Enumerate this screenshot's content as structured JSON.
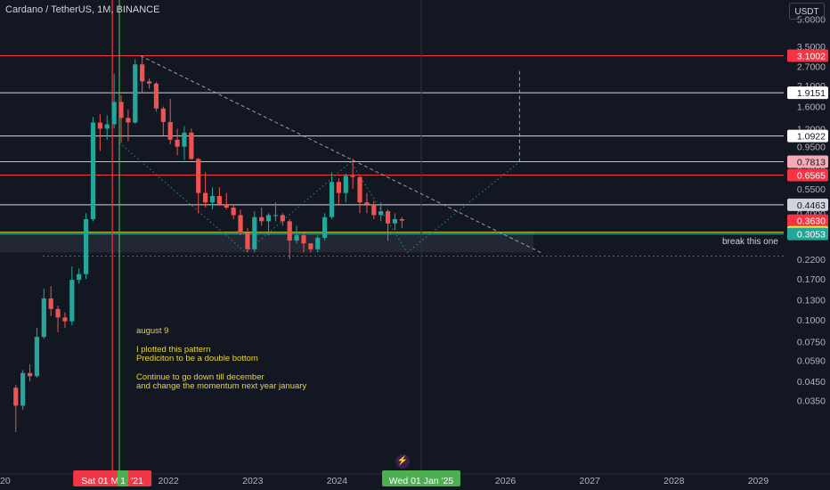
{
  "header": {
    "title": "Cardano / TetherUS, 1M, BINANCE",
    "currency": "USDT"
  },
  "annotations": {
    "note_lines": [
      "august 9",
      "",
      "I plotted this pattern",
      "Prediciton to be a double bottom",
      "",
      "Continue to go down till december",
      "and change the momentum next year january"
    ],
    "break_note": "break this one"
  },
  "colors": {
    "background": "#131722",
    "up": "#26a69a",
    "down": "#ef5350",
    "axis_text": "#b2b5be",
    "note": "#e8d43a"
  },
  "chart_data": {
    "type": "candlestick",
    "title": "Cardano / TetherUS, 1M, BINANCE",
    "y_scale": "log",
    "ylim": [
      0.03,
      6.0
    ],
    "y_ticks": [
      "5.0000",
      "3.5000",
      "2.7000",
      "2.1000",
      "1.6000",
      "1.2000",
      "0.9500",
      "0.7000",
      "0.5500",
      "0.4000",
      "0.3100",
      "0.2200",
      "0.1700",
      "0.1300",
      "0.1000",
      "0.0750",
      "0.0590",
      "0.0450",
      "0.0350"
    ],
    "x_ticks": [
      "2020",
      "2021",
      "2022",
      "2023",
      "2024",
      "2025",
      "2026",
      "2027",
      "2028",
      "2029"
    ],
    "x_tick_labels": [
      "2020",
      "",
      "2022",
      "2023",
      "2024",
      "",
      "2026",
      "2027",
      "2028",
      "2029"
    ],
    "x_partial_label": "1",
    "cursor_labels": [
      {
        "text": "Sat 01 May '21",
        "date": "2021-05-01",
        "color": "#f23645"
      },
      {
        "text": "Wed 01 Jan '25",
        "date": "2025-01-01",
        "color": "#4caf50"
      }
    ],
    "vertical_markers": [
      {
        "date": "2021-05-01",
        "color": "#f23645"
      },
      {
        "date": "2021-06-01",
        "color": "#4caf50"
      }
    ],
    "price_labels": [
      {
        "value": "3.1002",
        "bg": "#f23645",
        "fg": "#ffffff"
      },
      {
        "value": "1.9151",
        "bg": "#ffffff",
        "fg": "#131722"
      },
      {
        "value": "1.0922",
        "bg": "#ffffff",
        "fg": "#131722"
      },
      {
        "value": "0.7813",
        "bg": "#f7a9b5",
        "fg": "#131722"
      },
      {
        "value": "0.6565",
        "bg": "#f23645",
        "fg": "#ffffff"
      },
      {
        "value": "0.4463",
        "bg": "#d1d4dc",
        "fg": "#131722"
      },
      {
        "value": "0.3630",
        "bg": "#f23645",
        "fg": "#ffffff"
      },
      {
        "value": "0.3117",
        "bg": "#f5f046",
        "fg": "#131722"
      },
      {
        "value": "0.3053",
        "bg": "#26a69a",
        "fg": "#ffffff"
      }
    ],
    "horizontal_levels": [
      {
        "value": 3.1002,
        "color": "#f23645"
      },
      {
        "value": 1.9151,
        "color": "#d1d4dc"
      },
      {
        "value": 1.0922,
        "color": "#d1d4dc"
      },
      {
        "value": 0.7813,
        "color": "#f7a9b5"
      },
      {
        "value": 0.6565,
        "color": "#f23645"
      },
      {
        "value": 0.4463,
        "color": "#d1d4dc"
      },
      {
        "value": 0.3117,
        "color": "#f5f046"
      },
      {
        "value": 0.3053,
        "color": "#26a69a"
      }
    ],
    "support_zone": {
      "from_date": "2018-07-01",
      "to_date": "2026-05-01",
      "low": 0.24,
      "high": 0.31
    },
    "candles": [
      [
        "2020-03-01",
        0.0413,
        0.0427,
        0.0232,
        0.0327
      ],
      [
        "2020-04-01",
        0.0327,
        0.052,
        0.031,
        0.05
      ],
      [
        "2020-05-01",
        0.05,
        0.056,
        0.045,
        0.048
      ],
      [
        "2020-06-01",
        0.048,
        0.09,
        0.047,
        0.08
      ],
      [
        "2020-07-01",
        0.08,
        0.15,
        0.078,
        0.132
      ],
      [
        "2020-08-01",
        0.132,
        0.155,
        0.105,
        0.115
      ],
      [
        "2020-09-01",
        0.115,
        0.12,
        0.085,
        0.103
      ],
      [
        "2020-10-01",
        0.103,
        0.11,
        0.09,
        0.098
      ],
      [
        "2020-11-01",
        0.098,
        0.2,
        0.093,
        0.168
      ],
      [
        "2020-12-01",
        0.168,
        0.195,
        0.16,
        0.181
      ],
      [
        "2021-01-01",
        0.181,
        0.4,
        0.17,
        0.37
      ],
      [
        "2021-02-01",
        0.37,
        1.4,
        0.36,
        1.3
      ],
      [
        "2021-03-01",
        1.3,
        1.45,
        0.9,
        1.2
      ],
      [
        "2021-04-01",
        1.2,
        1.43,
        1.04,
        1.27
      ],
      [
        "2021-05-01",
        1.27,
        2.46,
        1.2,
        1.7
      ],
      [
        "2021-06-01",
        1.7,
        1.85,
        1.0,
        1.38
      ],
      [
        "2021-07-01",
        1.38,
        1.54,
        1.02,
        1.3
      ],
      [
        "2021-08-01",
        1.3,
        2.97,
        1.28,
        2.77
      ],
      [
        "2021-09-01",
        2.77,
        3.1,
        1.9,
        2.22
      ],
      [
        "2021-10-01",
        2.22,
        2.3,
        2.02,
        2.16
      ],
      [
        "2021-11-01",
        2.16,
        2.2,
        1.5,
        1.56
      ],
      [
        "2021-12-01",
        1.56,
        1.6,
        1.1,
        1.31
      ],
      [
        "2022-01-01",
        1.31,
        1.77,
        0.98,
        1.04
      ],
      [
        "2022-02-01",
        1.04,
        1.2,
        0.85,
        0.95
      ],
      [
        "2022-03-01",
        0.95,
        1.24,
        0.8,
        1.14
      ],
      [
        "2022-04-01",
        1.14,
        1.2,
        0.8,
        0.81
      ],
      [
        "2022-05-01",
        0.81,
        0.82,
        0.4,
        0.52
      ],
      [
        "2022-06-01",
        0.52,
        0.68,
        0.43,
        0.46
      ],
      [
        "2022-07-01",
        0.46,
        0.56,
        0.42,
        0.5
      ],
      [
        "2022-08-01",
        0.5,
        0.56,
        0.44,
        0.45
      ],
      [
        "2022-09-01",
        0.45,
        0.52,
        0.42,
        0.43
      ],
      [
        "2022-10-01",
        0.43,
        0.45,
        0.37,
        0.39
      ],
      [
        "2022-11-01",
        0.39,
        0.42,
        0.3,
        0.31
      ],
      [
        "2022-12-01",
        0.31,
        0.33,
        0.24,
        0.25
      ],
      [
        "2023-01-01",
        0.25,
        0.41,
        0.24,
        0.38
      ],
      [
        "2023-02-01",
        0.38,
        0.43,
        0.34,
        0.36
      ],
      [
        "2023-03-01",
        0.36,
        0.4,
        0.3,
        0.39
      ],
      [
        "2023-04-01",
        0.39,
        0.46,
        0.36,
        0.39
      ],
      [
        "2023-05-01",
        0.39,
        0.4,
        0.34,
        0.36
      ],
      [
        "2023-06-01",
        0.36,
        0.37,
        0.22,
        0.28
      ],
      [
        "2023-07-01",
        0.28,
        0.34,
        0.27,
        0.3
      ],
      [
        "2023-08-01",
        0.3,
        0.31,
        0.24,
        0.27
      ],
      [
        "2023-09-01",
        0.27,
        0.27,
        0.24,
        0.25
      ],
      [
        "2023-10-01",
        0.25,
        0.3,
        0.24,
        0.29
      ],
      [
        "2023-11-01",
        0.29,
        0.4,
        0.28,
        0.38
      ],
      [
        "2023-12-01",
        0.38,
        0.68,
        0.37,
        0.6
      ],
      [
        "2024-01-01",
        0.6,
        0.63,
        0.45,
        0.52
      ],
      [
        "2024-02-01",
        0.52,
        0.67,
        0.46,
        0.65
      ],
      [
        "2024-03-01",
        0.65,
        0.81,
        0.55,
        0.64
      ],
      [
        "2024-04-01",
        0.64,
        0.65,
        0.4,
        0.46
      ],
      [
        "2024-05-01",
        0.46,
        0.52,
        0.4,
        0.45
      ],
      [
        "2024-06-01",
        0.45,
        0.47,
        0.37,
        0.39
      ],
      [
        "2024-07-01",
        0.39,
        0.46,
        0.36,
        0.41
      ],
      [
        "2024-08-01",
        0.41,
        0.42,
        0.28,
        0.35
      ],
      [
        "2024-09-01",
        0.35,
        0.4,
        0.32,
        0.37
      ],
      [
        "2024-10-01",
        0.37,
        0.38,
        0.33,
        0.363
      ]
    ],
    "drawings": [
      {
        "type": "dashed",
        "color": "#b2b5be",
        "points": [
          [
            "2021-09-01",
            3.1
          ],
          [
            "2026-06-01",
            0.24
          ]
        ]
      },
      {
        "type": "dashed",
        "color": "#b2b5be",
        "points": [
          [
            "2026-03-01",
            0.78
          ],
          [
            "2026-03-01",
            2.6
          ]
        ]
      },
      {
        "type": "dotted",
        "color": "#26a69a",
        "points": [
          [
            "2021-06-01",
            1.0
          ],
          [
            "2022-12-01",
            0.24
          ],
          [
            "2024-03-01",
            0.78
          ],
          [
            "2024-11-01",
            0.24
          ],
          [
            "2026-03-01",
            0.78
          ]
        ]
      }
    ]
  }
}
